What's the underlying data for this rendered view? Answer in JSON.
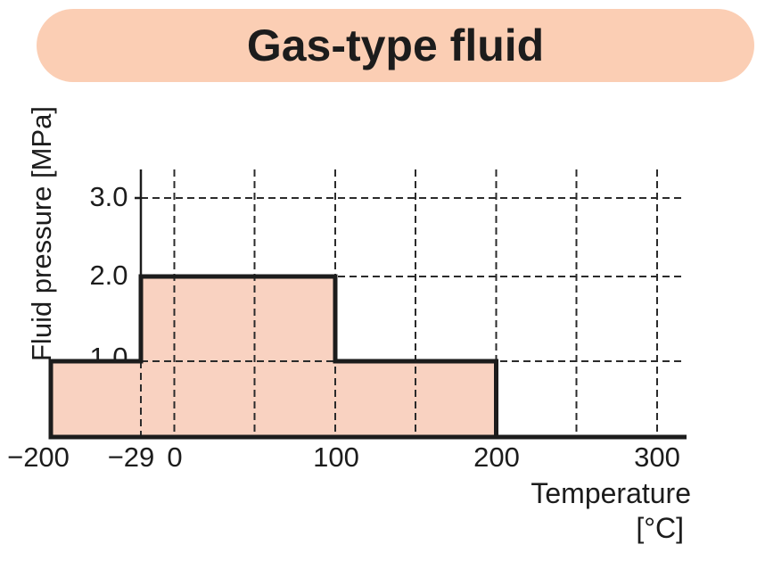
{
  "title": "Gas-type fluid",
  "chart_data": {
    "type": "area",
    "subtype": "step",
    "title": "Gas-type fluid",
    "xlabel": "Temperature",
    "x_unit": "[°C]",
    "ylabel": "Fluid pressure [MPa]",
    "x_ticks": [
      "−200",
      "−29",
      "0",
      "100",
      "200",
      "300"
    ],
    "x_tick_values": [
      -200,
      -29,
      0,
      100,
      200,
      300
    ],
    "y_ticks": [
      "1.0",
      "2.0",
      "3.0"
    ],
    "y_tick_values": [
      1,
      2,
      3
    ],
    "ylim": [
      0,
      3.4
    ],
    "grid": "dashed",
    "x_gridlines": [
      0,
      50,
      100,
      150,
      200,
      250,
      300
    ],
    "partial_x_gridline": {
      "x": -29,
      "below_pressure": 1
    },
    "y_gridlines": [
      1,
      2,
      3
    ],
    "steps": [
      {
        "from": -200,
        "to": -29,
        "pressure": 1.0
      },
      {
        "from": -29,
        "to": 100,
        "pressure": 2.0
      },
      {
        "from": 100,
        "to": 200,
        "pressure": 1.0
      }
    ],
    "profile_points": [
      [
        -200,
        1
      ],
      [
        -29,
        1
      ],
      [
        -29,
        2
      ],
      [
        100,
        2
      ],
      [
        100,
        1
      ],
      [
        200,
        1
      ],
      [
        200,
        0
      ]
    ],
    "colors": {
      "banner": "#fbceb4",
      "fill": "#f9d2c1",
      "line": "#1c1c1c",
      "grid": "#2b2b2b"
    }
  }
}
